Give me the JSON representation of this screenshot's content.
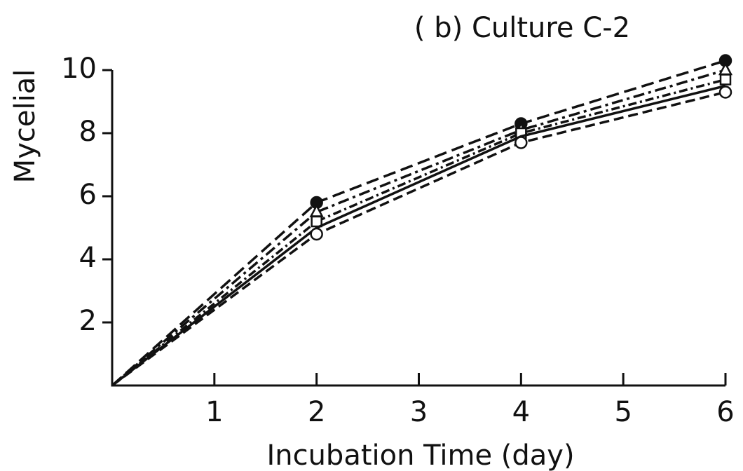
{
  "chart_data": {
    "type": "line",
    "title": "( b)  Culture  C-2",
    "x_label": "Incubation  Time  (day)",
    "y_label": "Mycelial",
    "x": [
      0,
      2,
      4,
      6
    ],
    "series": [
      {
        "color": "#111111",
        "marker": "filled-circle",
        "dash": "18 8",
        "values": [
          0,
          5.8,
          8.3,
          10.3
        ]
      },
      {
        "color": "#111111",
        "marker": "triangle",
        "dash": "16 6 4 6",
        "values": [
          0,
          5.5,
          8.1,
          10.0
        ]
      },
      {
        "color": "#111111",
        "marker": "square",
        "dash": "12 5 3 5",
        "values": [
          0,
          5.2,
          8.0,
          9.7
        ]
      },
      {
        "color": "#111111",
        "marker": "none",
        "dash": "none",
        "values": [
          0,
          5.0,
          7.9,
          9.5
        ]
      },
      {
        "color": "#111111",
        "marker": "open-circle",
        "dash": "14 7",
        "values": [
          0,
          4.8,
          7.7,
          9.3
        ]
      }
    ],
    "xlim": [
      0,
      6
    ],
    "xticks": [
      1,
      2,
      3,
      4,
      5,
      6
    ],
    "ylim": [
      0,
      10
    ],
    "yticks": [
      2,
      4,
      6,
      8,
      10
    ],
    "grid": false
  }
}
